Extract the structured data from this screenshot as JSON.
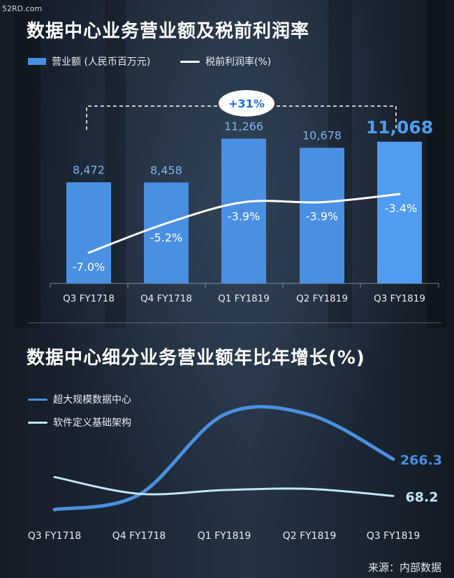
{
  "watermark": "52RD.com",
  "chart_data": [
    {
      "type": "bar",
      "title": "数据中心业务营业额及税前利润率",
      "categories": [
        "Q3 FY1718",
        "Q4 FY1718",
        "Q1 FY1819",
        "Q2 FY1819",
        "Q3 FY1819"
      ],
      "series": [
        {
          "name": "营业额 (人民币百万元)",
          "type": "bar",
          "values": [
            8472,
            8458,
            11266,
            10678,
            11068
          ],
          "value_labels": [
            "8,472",
            "8,458",
            "11,266",
            "10,678",
            "11,068"
          ]
        },
        {
          "name": "税前利润率(%)",
          "type": "line",
          "values": [
            -7.0,
            -5.2,
            -3.9,
            -3.9,
            -3.4
          ],
          "value_labels": [
            "-7.0%",
            "-5.2%",
            "-3.9%",
            "-3.9%",
            "-3.4%"
          ]
        }
      ],
      "annotation": "+31%",
      "colors": {
        "bar": "#4a90e2",
        "bar_highlight": "#4f9cf0",
        "line": "#ffffff"
      }
    },
    {
      "type": "line",
      "title": "数据中心细分业务营业额年比年增长(%)",
      "categories": [
        "Q3 FY1718",
        "Q4 FY1718",
        "Q1 FY1819",
        "Q2 FY1819",
        "Q3 FY1819"
      ],
      "series": [
        {
          "name": "超大规模数据中心",
          "end_label": "266.3",
          "color": "#4a8fe0",
          "values": [
            -5,
            75,
            505,
            505,
            266.3
          ]
        },
        {
          "name": "软件定义基础架构",
          "end_label": "68.2",
          "color": "#bfe6f5",
          "values": [
            170,
            80,
            100,
            106,
            68.2
          ]
        }
      ]
    }
  ],
  "source": "来源：内部数据"
}
